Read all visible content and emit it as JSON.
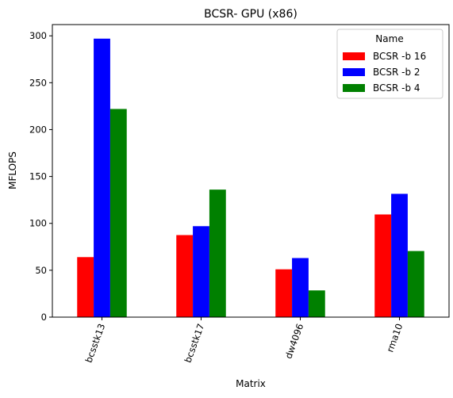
{
  "chart_data": {
    "type": "bar",
    "title": "BCSR- GPU (x86)",
    "xlabel": "Matrix",
    "ylabel": "MFLOPS",
    "categories": [
      "bcsstk13",
      "bcsstk17",
      "dw4096",
      "rma10"
    ],
    "series": [
      {
        "name": "BCSR -b 16",
        "color": "#ff0000",
        "values": [
          64,
          87.5,
          51,
          109.5
        ]
      },
      {
        "name": "BCSR -b 2",
        "color": "#0000ff",
        "values": [
          297,
          97,
          63,
          131.5
        ]
      },
      {
        "name": "BCSR -b 4",
        "color": "#008000",
        "values": [
          222,
          136,
          28.5,
          70.5
        ]
      }
    ],
    "ylim": [
      0,
      312
    ],
    "yticks": [
      0,
      50,
      100,
      150,
      200,
      250,
      300
    ],
    "legend": {
      "title": "Name",
      "position": "top-right"
    },
    "grid": false
  }
}
